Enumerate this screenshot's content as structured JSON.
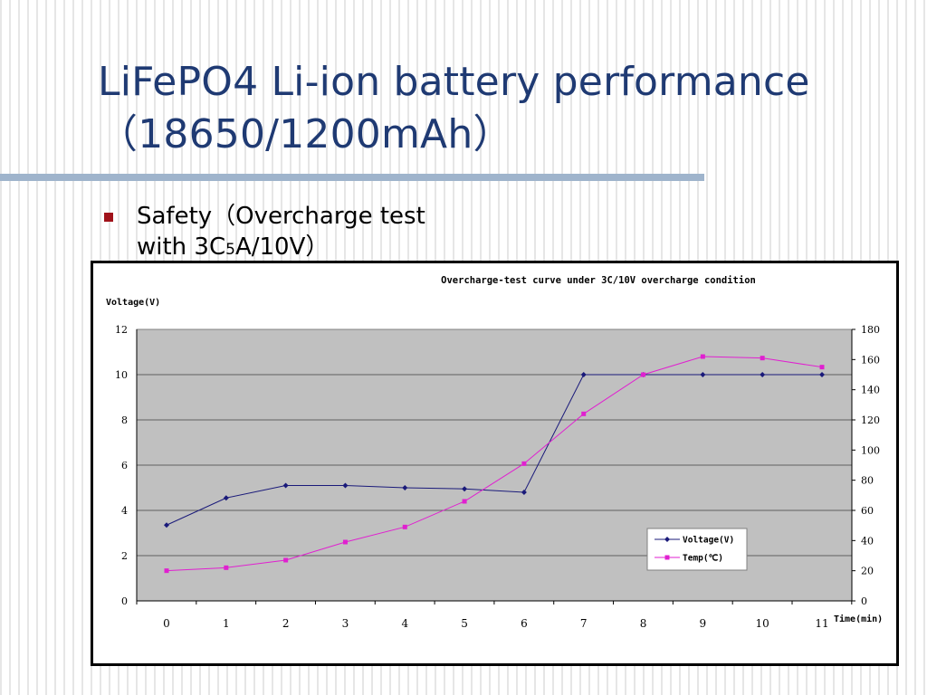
{
  "slide": {
    "title_line1": "LiFePO4 Li-ion battery performance",
    "title_line2": "（18650/1200mAh）",
    "bullet_text_a": "Safety（Overcharge test",
    "bullet_text_b": "with 3C",
    "bullet_text_sub": "5",
    "bullet_text_c": "A/10V）"
  },
  "colors": {
    "title": "#1f3a73",
    "accent_rule": "#9fb4cc",
    "bullet": "#a0121a",
    "plot_bg": "#c0c0c0",
    "voltage": "#1a1a7a",
    "temp": "#e020d0"
  },
  "chart_data": {
    "type": "line",
    "title": "Overcharge-test curve under 3C/10V overcharge condition",
    "ylabel": "Voltage(V)",
    "xlabel": "Time(min)",
    "y2label": "",
    "x": [
      0,
      1,
      2,
      3,
      4,
      5,
      6,
      7,
      8,
      9,
      10,
      11
    ],
    "xticks": [
      "0",
      "1",
      "2",
      "3",
      "4",
      "5",
      "6",
      "7",
      "8",
      "9",
      "10",
      "11"
    ],
    "ylim": [
      0,
      12
    ],
    "yticks": [
      "0",
      "2",
      "4",
      "6",
      "8",
      "10",
      "12"
    ],
    "y2lim": [
      0,
      180
    ],
    "y2ticks": [
      "0",
      "20",
      "40",
      "60",
      "80",
      "100",
      "120",
      "140",
      "160",
      "180"
    ],
    "series": [
      {
        "name": "Voltage(V)",
        "axis": "left",
        "marker": "diamond",
        "color": "#1a1a7a",
        "values": [
          3.35,
          4.55,
          5.1,
          5.1,
          5.0,
          4.95,
          4.8,
          10.0,
          10.0,
          10.0,
          10.0,
          10.0
        ]
      },
      {
        "name": "Temp(℃)",
        "axis": "right",
        "marker": "square",
        "color": "#e020d0",
        "values": [
          20,
          22,
          27,
          39,
          49,
          66,
          91,
          124,
          150,
          162,
          161,
          155
        ]
      }
    ],
    "grid": true,
    "legend": "inside-bottom-right"
  }
}
